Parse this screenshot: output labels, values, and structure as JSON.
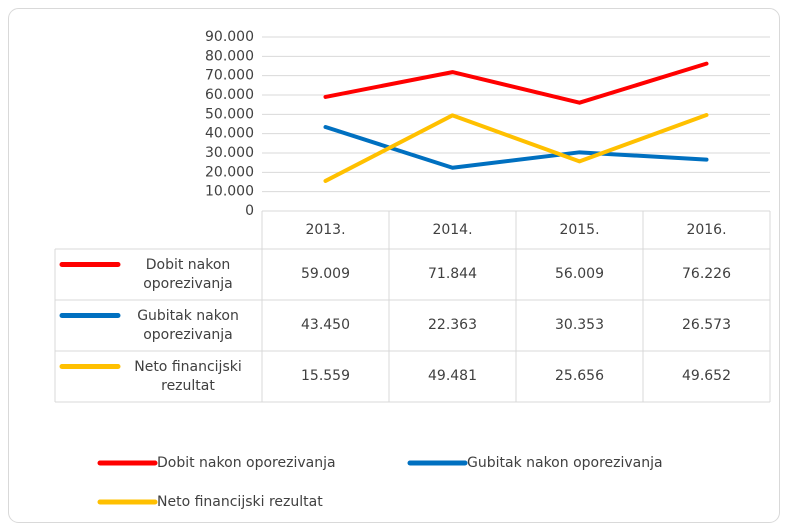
{
  "chart_data": {
    "type": "line",
    "categories": [
      "2013.",
      "2014.",
      "2015.",
      "2016."
    ],
    "series": [
      {
        "name": "Dobit nakon oporezivanja",
        "color": "#ff0000",
        "values": [
          59009,
          71844,
          56009,
          76226
        ],
        "value_labels": [
          "59.009",
          "71.844",
          "56.009",
          "76.226"
        ]
      },
      {
        "name": "Gubitak nakon oporezivanja",
        "color": "#0070c0",
        "values": [
          43450,
          22363,
          30353,
          26573
        ],
        "value_labels": [
          "43.450",
          "22.363",
          "30.353",
          "26.573"
        ]
      },
      {
        "name": "Neto financijski rezultat",
        "color": "#ffc000",
        "values": [
          15559,
          49481,
          25656,
          49652
        ],
        "value_labels": [
          "15.559",
          "49.481",
          "25.656",
          "49.652"
        ]
      }
    ],
    "ylim": [
      0,
      90000
    ],
    "yticks": [
      0,
      {
        "value": 10000,
        "label": "10.000"
      },
      {
        "value": 20000,
        "label": "20.000"
      },
      {
        "value": 30000,
        "label": "30.000"
      },
      {
        "value": 40000,
        "label": "40.000"
      },
      {
        "value": 50000,
        "label": "50.000"
      },
      {
        "value": 60000,
        "label": "60.000"
      },
      {
        "value": 70000,
        "label": "70.000"
      },
      {
        "value": 80000,
        "label": "80.000"
      },
      {
        "value": 90000,
        "label": "90.000"
      }
    ],
    "grid": true,
    "legend": "bottom"
  }
}
